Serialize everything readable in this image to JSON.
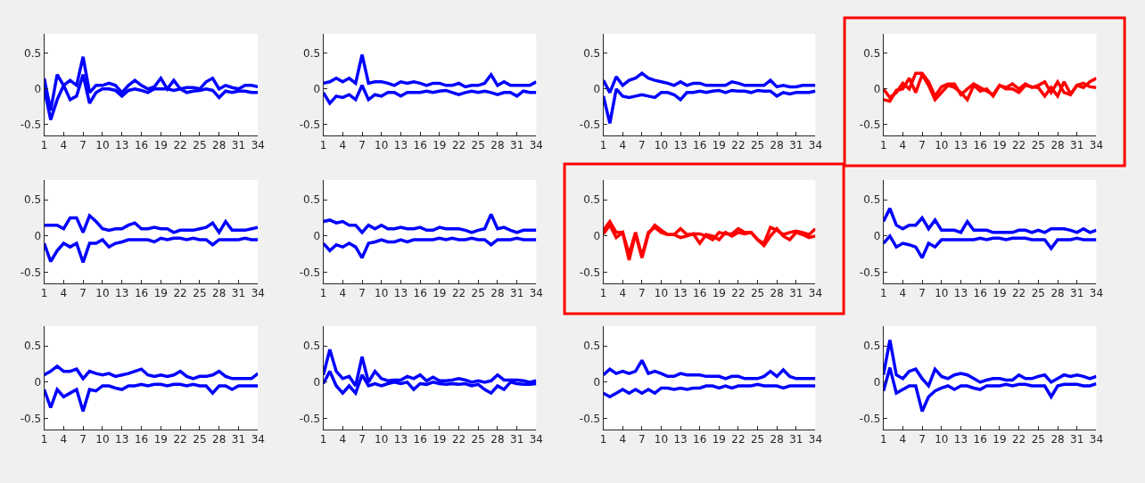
{
  "chart_data": [
    {
      "type": "line",
      "x": [
        1,
        2,
        3,
        4,
        5,
        6,
        7,
        8,
        9,
        10,
        11,
        12,
        13,
        14,
        15,
        16,
        17,
        18,
        19,
        20,
        21,
        22,
        23,
        24,
        25,
        26,
        27,
        28,
        29,
        30,
        31,
        32,
        33,
        34
      ],
      "xlim": [
        1,
        34
      ],
      "xticks": [
        1,
        4,
        7,
        10,
        13,
        16,
        19,
        22,
        25,
        28,
        31,
        34
      ],
      "ylim": [
        -0.65,
        0.77
      ],
      "yticks": [
        -0.5,
        0,
        0.5
      ],
      "grid": false,
      "series": [
        {
          "color": "#0000ff",
          "values": [
            0.15,
            -0.3,
            0.2,
            0.05,
            0.12,
            0.05,
            0.45,
            -0.05,
            0.05,
            0.05,
            0.08,
            0.05,
            -0.05,
            0.05,
            0.12,
            0.05,
            0,
            0.03,
            0.15,
            0,
            0.12,
            0,
            0.02,
            0.02,
            0,
            0.1,
            0.15,
            0,
            0.05,
            0.02,
            0,
            0.05,
            0.05,
            0.03
          ]
        },
        {
          "color": "#0000ff",
          "values": [
            0,
            -0.43,
            -0.15,
            0.05,
            -0.15,
            -0.1,
            0.2,
            -0.2,
            -0.05,
            0,
            0,
            -0.02,
            -0.1,
            -0.02,
            0,
            -0.02,
            -0.05,
            0,
            0,
            0,
            -0.02,
            0,
            -0.05,
            -0.03,
            -0.02,
            0,
            -0.02,
            -0.12,
            -0.03,
            -0.05,
            -0.03,
            -0.03,
            -0.05,
            -0.05
          ]
        }
      ]
    },
    {
      "type": "line",
      "x": [
        1,
        2,
        3,
        4,
        5,
        6,
        7,
        8,
        9,
        10,
        11,
        12,
        13,
        14,
        15,
        16,
        17,
        18,
        19,
        20,
        21,
        22,
        23,
        24,
        25,
        26,
        27,
        28,
        29,
        30,
        31,
        32,
        33,
        34
      ],
      "xlim": [
        1,
        34
      ],
      "xticks": [
        1,
        4,
        7,
        10,
        13,
        16,
        19,
        22,
        25,
        28,
        31,
        34
      ],
      "ylim": [
        -0.65,
        0.77
      ],
      "yticks": [
        -0.5,
        0,
        0.5
      ],
      "grid": false,
      "series": [
        {
          "color": "#0000ff",
          "values": [
            0.08,
            0.1,
            0.15,
            0.1,
            0.15,
            0.08,
            0.48,
            0.08,
            0.1,
            0.1,
            0.08,
            0.05,
            0.1,
            0.08,
            0.1,
            0.08,
            0.05,
            0.08,
            0.08,
            0.05,
            0.05,
            0.08,
            0.03,
            0.05,
            0.05,
            0.08,
            0.2,
            0.05,
            0.1,
            0.05,
            0.05,
            0.05,
            0.05,
            0.1
          ]
        },
        {
          "color": "#0000ff",
          "values": [
            -0.05,
            -0.2,
            -0.1,
            -0.12,
            -0.08,
            -0.15,
            0.05,
            -0.15,
            -0.08,
            -0.1,
            -0.05,
            -0.05,
            -0.1,
            -0.05,
            -0.05,
            -0.05,
            -0.03,
            -0.05,
            -0.03,
            -0.02,
            -0.05,
            -0.08,
            -0.05,
            -0.03,
            -0.05,
            -0.03,
            -0.05,
            -0.08,
            -0.05,
            -0.05,
            -0.1,
            -0.03,
            -0.05,
            -0.05
          ]
        }
      ]
    },
    {
      "type": "line",
      "x": [
        1,
        2,
        3,
        4,
        5,
        6,
        7,
        8,
        9,
        10,
        11,
        12,
        13,
        14,
        15,
        16,
        17,
        18,
        19,
        20,
        21,
        22,
        23,
        24,
        25,
        26,
        27,
        28,
        29,
        30,
        31,
        32,
        33,
        34
      ],
      "xlim": [
        1,
        34
      ],
      "xticks": [
        1,
        4,
        7,
        10,
        13,
        16,
        19,
        22,
        25,
        28,
        31,
        34
      ],
      "ylim": [
        -0.65,
        0.77
      ],
      "yticks": [
        -0.5,
        0,
        0.5
      ],
      "grid": false,
      "series": [
        {
          "color": "#0000ff",
          "values": [
            0.12,
            -0.05,
            0.17,
            0.05,
            0.12,
            0.15,
            0.22,
            0.15,
            0.12,
            0.1,
            0.08,
            0.05,
            0.1,
            0.05,
            0.08,
            0.08,
            0.05,
            0.05,
            0.05,
            0.05,
            0.1,
            0.08,
            0.05,
            0.05,
            0.05,
            0.05,
            0.12,
            0.03,
            0.05,
            0.03,
            0.03,
            0.05,
            0.05,
            0.05
          ]
        },
        {
          "color": "#0000ff",
          "values": [
            -0.1,
            -0.48,
            0,
            -0.1,
            -0.12,
            -0.1,
            -0.08,
            -0.1,
            -0.12,
            -0.05,
            -0.05,
            -0.08,
            -0.15,
            -0.05,
            -0.05,
            -0.03,
            -0.05,
            -0.03,
            -0.02,
            -0.05,
            -0.02,
            -0.03,
            -0.03,
            -0.05,
            -0.02,
            -0.03,
            -0.03,
            -0.1,
            -0.05,
            -0.07,
            -0.05,
            -0.05,
            -0.05,
            -0.03
          ]
        }
      ]
    },
    {
      "type": "line",
      "x": [
        1,
        2,
        3,
        4,
        5,
        6,
        7,
        8,
        9,
        10,
        11,
        12,
        13,
        14,
        15,
        16,
        17,
        18,
        19,
        20,
        21,
        22,
        23,
        24,
        25,
        26,
        27,
        28,
        29,
        30,
        31,
        32,
        33,
        34
      ],
      "xlim": [
        1,
        34
      ],
      "xticks": [
        1,
        4,
        7,
        10,
        13,
        16,
        19,
        22,
        25,
        28,
        31,
        34
      ],
      "ylim": [
        -0.65,
        0.77
      ],
      "yticks": [
        -0.5,
        0,
        0.5
      ],
      "grid": false,
      "series": [
        {
          "color": "#ff0000",
          "values": [
            0,
            -0.12,
            -0.05,
            0.08,
            0,
            0.22,
            0.22,
            0.1,
            -0.1,
            0.03,
            0.07,
            0.07,
            -0.08,
            0,
            0.07,
            0.02,
            -0.03,
            -0.08,
            0.05,
            0.02,
            0.07,
            0,
            0.07,
            0.02,
            0.05,
            0.1,
            -0.05,
            0.1,
            -0.05,
            -0.08,
            0.05,
            0.08,
            0.03,
            0.02
          ]
        },
        {
          "color": "#ff0000",
          "values": [
            -0.15,
            -0.17,
            -0.02,
            0,
            0.15,
            -0.05,
            0.2,
            0.05,
            -0.15,
            -0.05,
            0.05,
            0.02,
            -0.05,
            -0.15,
            0.05,
            -0.03,
            0,
            -0.1,
            0.05,
            0,
            0,
            -0.05,
            0.05,
            0.03,
            0.02,
            -0.1,
            0.02,
            -0.1,
            0.1,
            -0.07,
            0.05,
            0.02,
            0.1,
            0.15
          ]
        }
      ]
    },
    {
      "type": "line",
      "x": [
        1,
        2,
        3,
        4,
        5,
        6,
        7,
        8,
        9,
        10,
        11,
        12,
        13,
        14,
        15,
        16,
        17,
        18,
        19,
        20,
        21,
        22,
        23,
        24,
        25,
        26,
        27,
        28,
        29,
        30,
        31,
        32,
        33,
        34
      ],
      "xlim": [
        1,
        34
      ],
      "xticks": [
        1,
        4,
        7,
        10,
        13,
        16,
        19,
        22,
        25,
        28,
        31,
        34
      ],
      "ylim": [
        -0.65,
        0.77
      ],
      "yticks": [
        -0.5,
        0,
        0.5
      ],
      "grid": false,
      "series": [
        {
          "color": "#0000ff",
          "values": [
            0.15,
            0.15,
            0.15,
            0.1,
            0.25,
            0.25,
            0.05,
            0.28,
            0.2,
            0.1,
            0.08,
            0.1,
            0.1,
            0.15,
            0.18,
            0.1,
            0.1,
            0.12,
            0.1,
            0.1,
            0.05,
            0.08,
            0.08,
            0.08,
            0.1,
            0.12,
            0.18,
            0.05,
            0.2,
            0.08,
            0.08,
            0.08,
            0.1,
            0.12
          ]
        },
        {
          "color": "#0000ff",
          "values": [
            -0.1,
            -0.35,
            -0.2,
            -0.1,
            -0.15,
            -0.1,
            -0.36,
            -0.1,
            -0.1,
            -0.05,
            -0.15,
            -0.1,
            -0.08,
            -0.05,
            -0.05,
            -0.05,
            -0.05,
            -0.08,
            -0.03,
            -0.05,
            -0.03,
            -0.03,
            -0.05,
            -0.03,
            -0.05,
            -0.05,
            -0.12,
            -0.05,
            -0.05,
            -0.05,
            -0.05,
            -0.03,
            -0.05,
            -0.05
          ]
        }
      ]
    },
    {
      "type": "line",
      "x": [
        1,
        2,
        3,
        4,
        5,
        6,
        7,
        8,
        9,
        10,
        11,
        12,
        13,
        14,
        15,
        16,
        17,
        18,
        19,
        20,
        21,
        22,
        23,
        24,
        25,
        26,
        27,
        28,
        29,
        30,
        31,
        32,
        33,
        34
      ],
      "xlim": [
        1,
        34
      ],
      "xticks": [
        1,
        4,
        7,
        10,
        13,
        16,
        19,
        22,
        25,
        28,
        31,
        34
      ],
      "ylim": [
        -0.65,
        0.77
      ],
      "yticks": [
        -0.5,
        0,
        0.5
      ],
      "grid": false,
      "series": [
        {
          "color": "#0000ff",
          "values": [
            0.2,
            0.22,
            0.18,
            0.2,
            0.15,
            0.15,
            0.05,
            0.15,
            0.1,
            0.15,
            0.1,
            0.1,
            0.12,
            0.1,
            0.1,
            0.12,
            0.08,
            0.08,
            0.12,
            0.1,
            0.1,
            0.1,
            0.08,
            0.05,
            0.08,
            0.1,
            0.3,
            0.1,
            0.12,
            0.08,
            0.05,
            0.08,
            0.08,
            0.08
          ]
        },
        {
          "color": "#0000ff",
          "values": [
            -0.1,
            -0.2,
            -0.12,
            -0.15,
            -0.1,
            -0.15,
            -0.3,
            -0.1,
            -0.08,
            -0.05,
            -0.08,
            -0.08,
            -0.05,
            -0.08,
            -0.05,
            -0.05,
            -0.05,
            -0.05,
            -0.03,
            -0.05,
            -0.03,
            -0.05,
            -0.05,
            -0.03,
            -0.05,
            -0.05,
            -0.12,
            -0.05,
            -0.05,
            -0.05,
            -0.03,
            -0.05,
            -0.05,
            -0.05
          ]
        }
      ]
    },
    {
      "type": "line",
      "x": [
        1,
        2,
        3,
        4,
        5,
        6,
        7,
        8,
        9,
        10,
        11,
        12,
        13,
        14,
        15,
        16,
        17,
        18,
        19,
        20,
        21,
        22,
        23,
        24,
        25,
        26,
        27,
        28,
        29,
        30,
        31,
        32,
        33,
        34
      ],
      "xlim": [
        1,
        34
      ],
      "xticks": [
        1,
        4,
        7,
        10,
        13,
        16,
        19,
        22,
        25,
        28,
        31,
        34
      ],
      "ylim": [
        -0.65,
        0.77
      ],
      "yticks": [
        -0.5,
        0,
        0.5
      ],
      "grid": false,
      "series": [
        {
          "color": "#ff0000",
          "values": [
            0.08,
            0.2,
            0.05,
            0.05,
            -0.25,
            0.05,
            -0.28,
            0.05,
            0.12,
            0.05,
            0.02,
            0.02,
            0.1,
            0.02,
            0.03,
            0.03,
            0,
            -0.05,
            0.05,
            0.03,
            0.03,
            0.1,
            0.05,
            0.05,
            -0.05,
            -0.1,
            0.12,
            0.08,
            0.02,
            0.05,
            0.07,
            0.05,
            0.02,
            0.1
          ]
        },
        {
          "color": "#ff0000",
          "values": [
            0.03,
            0.15,
            -0.02,
            0.05,
            -0.33,
            0.03,
            -0.3,
            0.03,
            0.15,
            0.08,
            0.02,
            0.02,
            -0.02,
            0,
            0.03,
            -0.1,
            0.02,
            0,
            -0.05,
            0.05,
            0,
            0.05,
            0.03,
            0.05,
            -0.05,
            -0.13,
            0,
            0.1,
            0,
            -0.05,
            0.05,
            0.02,
            -0.02,
            0
          ]
        }
      ]
    },
    {
      "type": "line",
      "x": [
        1,
        2,
        3,
        4,
        5,
        6,
        7,
        8,
        9,
        10,
        11,
        12,
        13,
        14,
        15,
        16,
        17,
        18,
        19,
        20,
        21,
        22,
        23,
        24,
        25,
        26,
        27,
        28,
        29,
        30,
        31,
        32,
        33,
        34
      ],
      "xlim": [
        1,
        34
      ],
      "xticks": [
        1,
        4,
        7,
        10,
        13,
        16,
        19,
        22,
        25,
        28,
        31,
        34
      ],
      "ylim": [
        -0.65,
        0.77
      ],
      "yticks": [
        -0.5,
        0,
        0.5
      ],
      "grid": false,
      "series": [
        {
          "color": "#0000ff",
          "values": [
            0.2,
            0.38,
            0.15,
            0.1,
            0.15,
            0.15,
            0.25,
            0.1,
            0.22,
            0.08,
            0.08,
            0.08,
            0.05,
            0.2,
            0.08,
            0.08,
            0.08,
            0.05,
            0.05,
            0.05,
            0.05,
            0.08,
            0.08,
            0.05,
            0.08,
            0.05,
            0.1,
            0.1,
            0.1,
            0.08,
            0.05,
            0.1,
            0.05,
            0.08
          ]
        },
        {
          "color": "#0000ff",
          "values": [
            -0.1,
            0,
            -0.15,
            -0.1,
            -0.12,
            -0.15,
            -0.3,
            -0.1,
            -0.15,
            -0.05,
            -0.05,
            -0.05,
            -0.05,
            -0.05,
            -0.05,
            -0.03,
            -0.05,
            -0.03,
            -0.03,
            -0.05,
            -0.03,
            -0.03,
            -0.03,
            -0.05,
            -0.05,
            -0.05,
            -0.17,
            -0.05,
            -0.05,
            -0.05,
            -0.03,
            -0.05,
            -0.05,
            -0.05
          ]
        }
      ]
    },
    {
      "type": "line",
      "x": [
        1,
        2,
        3,
        4,
        5,
        6,
        7,
        8,
        9,
        10,
        11,
        12,
        13,
        14,
        15,
        16,
        17,
        18,
        19,
        20,
        21,
        22,
        23,
        24,
        25,
        26,
        27,
        28,
        29,
        30,
        31,
        32,
        33,
        34
      ],
      "xlim": [
        1,
        34
      ],
      "xticks": [
        1,
        4,
        7,
        10,
        13,
        16,
        19,
        22,
        25,
        28,
        31,
        34
      ],
      "ylim": [
        -0.65,
        0.77
      ],
      "yticks": [
        -0.5,
        0,
        0.5
      ],
      "grid": false,
      "series": [
        {
          "color": "#0000ff",
          "values": [
            0.1,
            0.15,
            0.22,
            0.15,
            0.15,
            0.18,
            0.05,
            0.15,
            0.12,
            0.1,
            0.12,
            0.08,
            0.1,
            0.12,
            0.15,
            0.18,
            0.1,
            0.08,
            0.1,
            0.08,
            0.1,
            0.15,
            0.08,
            0.05,
            0.08,
            0.08,
            0.1,
            0.15,
            0.08,
            0.05,
            0.05,
            0.05,
            0.05,
            0.12
          ]
        },
        {
          "color": "#0000ff",
          "values": [
            -0.1,
            -0.35,
            -0.1,
            -0.2,
            -0.15,
            -0.1,
            -0.4,
            -0.1,
            -0.12,
            -0.05,
            -0.05,
            -0.08,
            -0.1,
            -0.05,
            -0.05,
            -0.03,
            -0.05,
            -0.03,
            -0.03,
            -0.05,
            -0.03,
            -0.03,
            -0.05,
            -0.03,
            -0.05,
            -0.05,
            -0.15,
            -0.05,
            -0.05,
            -0.1,
            -0.05,
            -0.05,
            -0.05,
            -0.05
          ]
        }
      ]
    },
    {
      "type": "line",
      "x": [
        1,
        2,
        3,
        4,
        5,
        6,
        7,
        8,
        9,
        10,
        11,
        12,
        13,
        14,
        15,
        16,
        17,
        18,
        19,
        20,
        21,
        22,
        23,
        24,
        25,
        26,
        27,
        28,
        29,
        30,
        31,
        32,
        33,
        34
      ],
      "xlim": [
        1,
        34
      ],
      "xticks": [
        1,
        4,
        7,
        10,
        13,
        16,
        19,
        22,
        25,
        28,
        31,
        34
      ],
      "ylim": [
        -0.65,
        0.77
      ],
      "yticks": [
        -0.5,
        0,
        0.5
      ],
      "grid": false,
      "series": [
        {
          "color": "#0000ff",
          "values": [
            0.1,
            0.45,
            0.15,
            0.05,
            0.08,
            -0.05,
            0.35,
            0,
            0.15,
            0.05,
            0.02,
            0.03,
            0.03,
            0.08,
            0.05,
            0.1,
            0.02,
            0.07,
            0.02,
            0.02,
            0.03,
            0.05,
            0.03,
            0,
            0.02,
            0,
            0.02,
            0.1,
            0.03,
            0.03,
            0.03,
            0.02,
            0,
            0.02
          ]
        },
        {
          "color": "#0000ff",
          "values": [
            -0.02,
            0.15,
            -0.05,
            -0.15,
            -0.05,
            -0.15,
            0.1,
            -0.05,
            -0.02,
            -0.05,
            -0.02,
            0,
            -0.02,
            0,
            -0.1,
            -0.02,
            -0.03,
            0,
            -0.02,
            -0.03,
            -0.02,
            -0.03,
            -0.02,
            -0.05,
            -0.03,
            -0.1,
            -0.15,
            -0.05,
            -0.1,
            0,
            -0.02,
            -0.03,
            -0.03,
            -0.02
          ]
        }
      ]
    },
    {
      "type": "line",
      "x": [
        1,
        2,
        3,
        4,
        5,
        6,
        7,
        8,
        9,
        10,
        11,
        12,
        13,
        14,
        15,
        16,
        17,
        18,
        19,
        20,
        21,
        22,
        23,
        24,
        25,
        26,
        27,
        28,
        29,
        30,
        31,
        32,
        33,
        34
      ],
      "xlim": [
        1,
        34
      ],
      "xticks": [
        1,
        4,
        7,
        10,
        13,
        16,
        19,
        22,
        25,
        28,
        31,
        34
      ],
      "ylim": [
        -0.65,
        0.77
      ],
      "yticks": [
        -0.5,
        0,
        0.5
      ],
      "grid": false,
      "series": [
        {
          "color": "#0000ff",
          "values": [
            0.1,
            0.18,
            0.12,
            0.15,
            0.12,
            0.15,
            0.3,
            0.12,
            0.15,
            0.12,
            0.08,
            0.08,
            0.12,
            0.1,
            0.1,
            0.1,
            0.08,
            0.08,
            0.08,
            0.05,
            0.08,
            0.08,
            0.05,
            0.05,
            0.05,
            0.08,
            0.15,
            0.08,
            0.17,
            0.08,
            0.05,
            0.05,
            0.05,
            0.05
          ]
        },
        {
          "color": "#0000ff",
          "values": [
            -0.15,
            -0.2,
            -0.15,
            -0.1,
            -0.15,
            -0.1,
            -0.15,
            -0.1,
            -0.15,
            -0.08,
            -0.08,
            -0.1,
            -0.08,
            -0.1,
            -0.08,
            -0.08,
            -0.05,
            -0.05,
            -0.08,
            -0.05,
            -0.08,
            -0.05,
            -0.05,
            -0.05,
            -0.03,
            -0.05,
            -0.05,
            -0.05,
            -0.08,
            -0.05,
            -0.05,
            -0.05,
            -0.05,
            -0.05
          ]
        }
      ]
    },
    {
      "type": "line",
      "x": [
        1,
        2,
        3,
        4,
        5,
        6,
        7,
        8,
        9,
        10,
        11,
        12,
        13,
        14,
        15,
        16,
        17,
        18,
        19,
        20,
        21,
        22,
        23,
        24,
        25,
        26,
        27,
        28,
        29,
        30,
        31,
        32,
        33,
        34
      ],
      "xlim": [
        1,
        34
      ],
      "xticks": [
        1,
        4,
        7,
        10,
        13,
        16,
        19,
        22,
        25,
        28,
        31,
        34
      ],
      "ylim": [
        -0.65,
        0.77
      ],
      "yticks": [
        -0.5,
        0,
        0.5
      ],
      "grid": false,
      "series": [
        {
          "color": "#0000ff",
          "values": [
            0.1,
            0.58,
            0.1,
            0.05,
            0.15,
            0.18,
            0.05,
            -0.05,
            0.18,
            0.08,
            0.05,
            0.1,
            0.12,
            0.1,
            0.05,
            0,
            0.03,
            0.05,
            0.05,
            0.03,
            0.03,
            0.1,
            0.05,
            0.05,
            0.08,
            0.1,
            0,
            0.05,
            0.1,
            0.08,
            0.1,
            0.08,
            0.05,
            0.08
          ]
        },
        {
          "color": "#0000ff",
          "values": [
            -0.12,
            0.2,
            -0.15,
            -0.1,
            -0.05,
            -0.05,
            -0.4,
            -0.2,
            -0.12,
            -0.08,
            -0.05,
            -0.1,
            -0.05,
            -0.05,
            -0.08,
            -0.1,
            -0.05,
            -0.05,
            -0.05,
            -0.03,
            -0.05,
            -0.03,
            -0.03,
            -0.05,
            -0.05,
            -0.05,
            -0.2,
            -0.05,
            -0.03,
            -0.03,
            -0.03,
            -0.05,
            -0.05,
            -0.02
          ]
        }
      ]
    }
  ]
}
